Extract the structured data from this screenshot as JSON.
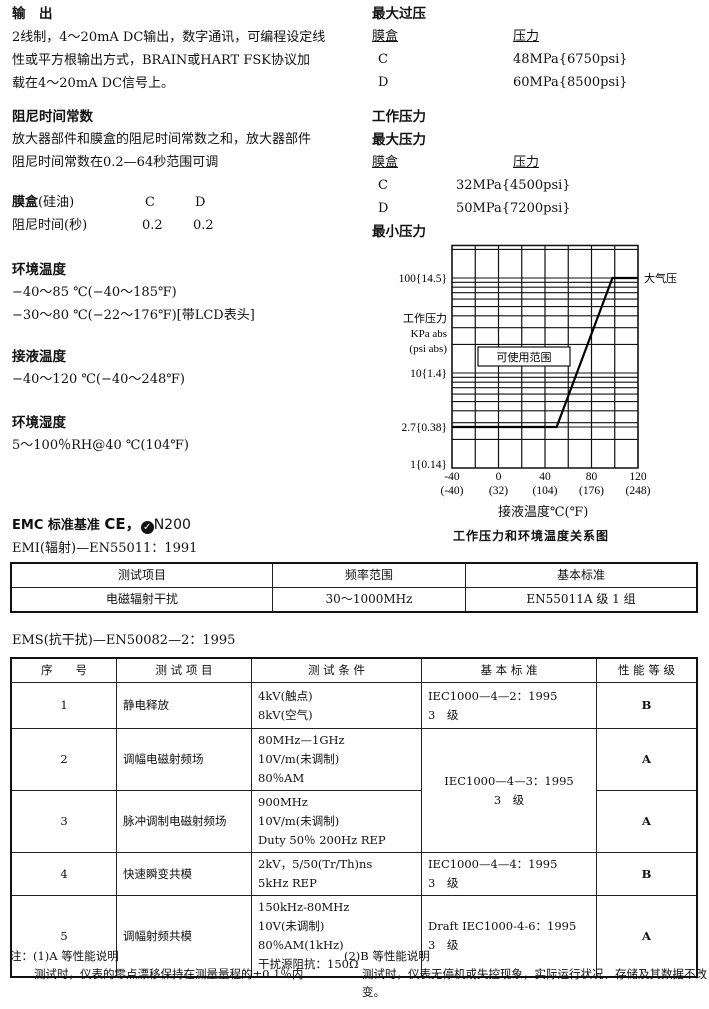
{
  "output": {
    "title": "输　出",
    "lines": [
      "2线制，4～20mA DC输出，数字通讯，可编程设定线",
      "性或平方根输出方式，BRAIN或HART FSK协议加",
      "载在4～20mA DC信号上。"
    ]
  },
  "damping": {
    "title": "阻尼时间常数",
    "lines": [
      "放大器部件和膜盒的阻尼时间常数之和，放大器部件",
      "阻尼时间常数在0.2—64秒范围可调"
    ],
    "row1": {
      "label": "膜盒",
      "note": "(硅油)",
      "c": "C",
      "d": "D"
    },
    "row2": {
      "label": "阻尼时间(秒)",
      "c": "0.2",
      "d": "0.2"
    }
  },
  "ambient_temp": {
    "title": "环境温度",
    "lines": [
      "−40～85 ℃(−40～185℉)",
      "−30～80 ℃(−22～176℉)[带LCD表头]"
    ]
  },
  "process_temp": {
    "title": "接液温度",
    "lines": [
      "−40～120 ℃(−40～248℉)"
    ]
  },
  "humidity": {
    "title": "环境湿度",
    "lines": [
      "5～100％RH@40 ℃(104℉)"
    ]
  },
  "max_overpressure": {
    "title": "最大过压",
    "col1": "膜盒",
    "col2": "压力",
    "rows": [
      {
        "capsule": "C",
        "pressure": "48MPa{6750psi}"
      },
      {
        "capsule": "D",
        "pressure": "60MPa{8500psi}"
      }
    ]
  },
  "working_pressure": {
    "title": "工作压力",
    "subtitle": "最大压力",
    "col1": "膜盒",
    "col2": "压力",
    "rows": [
      {
        "capsule": "C",
        "pressure": "32MPa{4500psi}"
      },
      {
        "capsule": "D",
        "pressure": "50MPa{7200psi}"
      }
    ],
    "min_title": "最小压力"
  },
  "chart_data": {
    "type": "line",
    "title": "工作压力和环境温度关系图",
    "xlabel": "接液温度℃(℉)",
    "ylabel": [
      "工作压力",
      "KPa abs",
      "(psi abs)"
    ],
    "x_ticks": [
      {
        "value": -40,
        "label": "-40",
        "label2": "(-40)"
      },
      {
        "value": 0,
        "label": "0",
        "label2": "(32)"
      },
      {
        "value": 40,
        "label": "40",
        "label2": "(104)"
      },
      {
        "value": 80,
        "label": "80",
        "label2": "(176)"
      },
      {
        "value": 120,
        "label": "120",
        "label2": "(248)"
      }
    ],
    "y_ticks": [
      {
        "value": 100,
        "label": "100{14.5}"
      },
      {
        "value": 10,
        "label": "10{1.4}"
      },
      {
        "value": 2.7,
        "label": "2.7{0.38}"
      },
      {
        "value": 1,
        "label": "1{0.14}"
      }
    ],
    "xlim": [
      -40,
      120
    ],
    "ylim": [
      1,
      220
    ],
    "y_scale": "log",
    "grid": true,
    "series": [
      {
        "points": [
          [
            -40,
            2.7
          ],
          [
            50,
            2.7
          ],
          [
            98,
            100
          ],
          [
            120,
            100
          ]
        ]
      }
    ],
    "annotations": {
      "atmospheric": "大气压",
      "usable_region": "可使用范围"
    }
  },
  "emc": {
    "title": "EMC 标准基准",
    "marks": "CE，",
    "mark2": "N200",
    "emi_line": "EMI(辐射)—EN55011：1991",
    "ems_line": "EMS(抗干扰)—EN50082—2：1995"
  },
  "emi_table": {
    "headers": [
      "测试项目",
      "频率范围",
      "基本标准"
    ],
    "row": [
      "电磁辐射干扰",
      "30～1000MHz",
      "EN55011A 级 1 组"
    ]
  },
  "ems_table": {
    "headers": [
      "序　　号",
      "测 试 项 目",
      "测 试 条 件",
      "基 本 标 准",
      "性 能 等 级"
    ],
    "rows": [
      {
        "no": "1",
        "item": "静电释放",
        "cond": [
          "4kV(触点)",
          "8kV(空气)"
        ],
        "std": [
          "IEC1000—4—2：1995",
          "3　级"
        ],
        "grade": "B"
      },
      {
        "no": "2",
        "item": "调幅电磁射频场",
        "cond": [
          "80MHz—1GHz",
          "10V/m(未调制)",
          "80％AM"
        ],
        "std": [
          "IEC1000—4—3：1995",
          "3　级"
        ],
        "grade": "A"
      },
      {
        "no": "3",
        "item": "脉冲调制电磁射频场",
        "cond": [
          "900MHz",
          "10V/m(未调制)",
          "Duty 50％ 200Hz REP"
        ],
        "grade": "A"
      },
      {
        "no": "4",
        "item": "快速瞬变共模",
        "cond": [
          "2kV，5/50(Tr/Th)ns",
          "5kHz REP"
        ],
        "std": [
          "IEC1000—4—4：1995",
          "3　级"
        ],
        "grade": "B"
      },
      {
        "no": "5",
        "item": "调幅射频共模",
        "cond": [
          "150kHz-80MHz",
          "10V(未调制)",
          "80％AM(1kHz)",
          "干扰源阻抗：150Ω"
        ],
        "std": [
          "Draft IEC1000-4-6：1995",
          "3　级"
        ],
        "grade": "A"
      }
    ]
  },
  "notes": {
    "a_title": "注：(1)A 等性能说明",
    "a_text": "测试时，仪表的零点漂移保持在测量量程的±0.1％内",
    "b_title": "(2)B 等性能说明",
    "b_text1": "测试时，仪表无停机或失控现象，实际运行状况、存储及其数据不改",
    "b_text2": "变。"
  }
}
